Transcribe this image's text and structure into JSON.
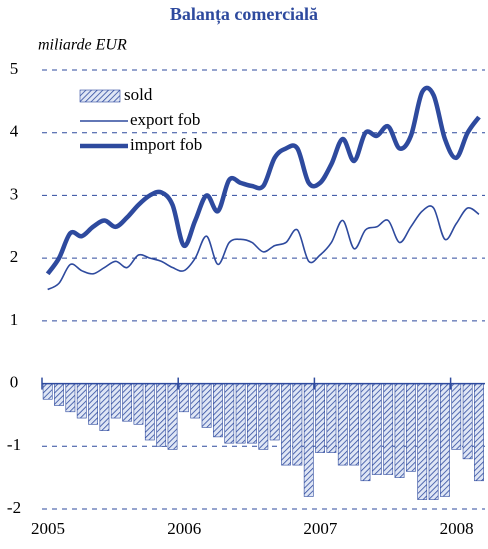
{
  "chart_data": {
    "type": "bar_line",
    "title": "Balanța comercială",
    "ylabel": "miliarde EUR",
    "categories": [
      "2005",
      null,
      null,
      null,
      null,
      null,
      null,
      null,
      null,
      null,
      null,
      null,
      "2006",
      null,
      null,
      null,
      null,
      null,
      null,
      null,
      null,
      null,
      null,
      null,
      "2007",
      null,
      null,
      null,
      null,
      null,
      null,
      null,
      null,
      null,
      null,
      null,
      "2008",
      null,
      null
    ],
    "series": [
      {
        "name": "sold",
        "kind": "bar",
        "color": "#2e4a9e",
        "values": [
          -0.25,
          -0.35,
          -0.45,
          -0.55,
          -0.65,
          -0.75,
          -0.55,
          -0.6,
          -0.65,
          -0.9,
          -1.0,
          -1.05,
          -0.45,
          -0.55,
          -0.7,
          -0.85,
          -0.95,
          -0.95,
          -0.95,
          -1.05,
          -0.9,
          -1.3,
          -1.3,
          -1.8,
          -1.1,
          -1.1,
          -1.3,
          -1.3,
          -1.55,
          -1.45,
          -1.45,
          -1.5,
          -1.4,
          -1.85,
          -1.85,
          -1.8,
          -1.05,
          -1.2,
          -1.55
        ]
      },
      {
        "name": "export fob",
        "kind": "line",
        "color": "#2e4a9e",
        "values": [
          1.5,
          1.6,
          1.9,
          1.8,
          1.75,
          1.85,
          1.95,
          1.85,
          2.05,
          2.0,
          1.95,
          1.85,
          1.8,
          2.0,
          2.35,
          1.9,
          2.25,
          2.3,
          2.25,
          2.1,
          2.2,
          2.25,
          2.45,
          1.95,
          2.05,
          2.25,
          2.6,
          2.15,
          2.45,
          2.5,
          2.6,
          2.25,
          2.5,
          2.75,
          2.8,
          2.3,
          2.55,
          2.8,
          2.7
        ]
      },
      {
        "name": "import fob",
        "kind": "thick-line",
        "color": "#2e4a9e",
        "values": [
          1.75,
          2.0,
          2.4,
          2.35,
          2.5,
          2.6,
          2.5,
          2.65,
          2.85,
          3.0,
          3.05,
          2.85,
          2.2,
          2.6,
          3.0,
          2.75,
          3.25,
          3.2,
          3.15,
          3.15,
          3.6,
          3.75,
          3.75,
          3.2,
          3.2,
          3.5,
          3.9,
          3.55,
          4.0,
          3.95,
          4.1,
          3.75,
          3.95,
          4.65,
          4.6,
          3.9,
          3.6,
          4.0,
          4.25
        ]
      }
    ],
    "ylim": [
      -2,
      5
    ],
    "yticks": [
      -2,
      -1,
      0,
      1,
      2,
      3,
      4,
      5
    ],
    "grid": true,
    "legend": "top-left"
  }
}
